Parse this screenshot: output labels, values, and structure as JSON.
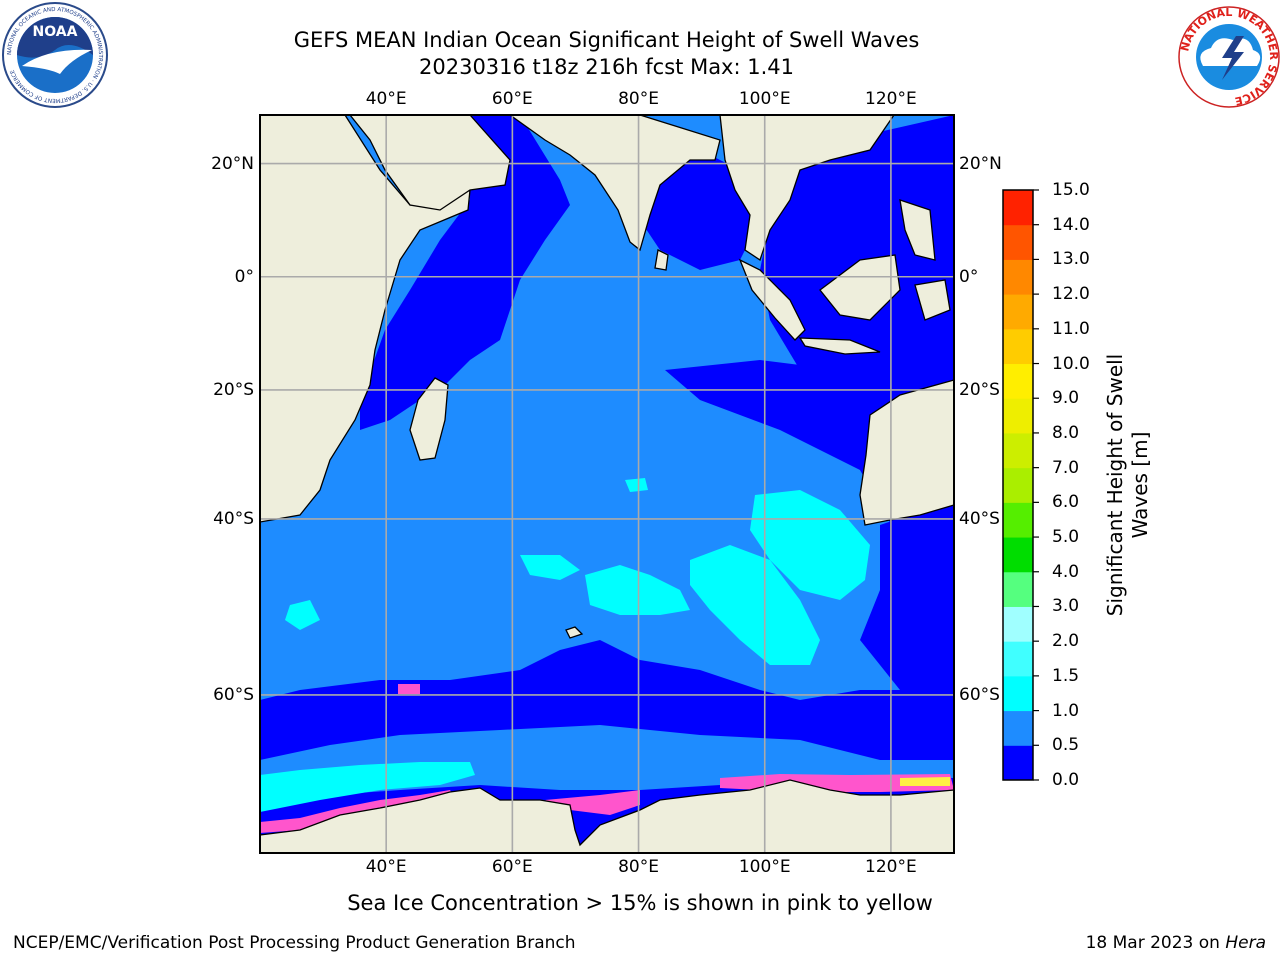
{
  "header": {
    "title_line1": "GEFS MEAN Indian Ocean Significant Height of Swell Waves",
    "title_line2": "20230316 t18z 216h fcst   Max: 1.41"
  },
  "logos": {
    "noaa": {
      "text": "NOAA",
      "ring_text": "NATIONAL OCEANIC AND ATMOSPHERIC ADMINISTRATION · U.S. DEPARTMENT OF COMMERCE"
    },
    "nws": {
      "ring_text": "NATIONAL WEATHER SERVICE"
    }
  },
  "map": {
    "lon_range": [
      20,
      130
    ],
    "lat_range": [
      -71.5,
      28
    ],
    "lon_ticks": [
      {
        "value": 40,
        "label": "40°E"
      },
      {
        "value": 60,
        "label": "60°E"
      },
      {
        "value": 80,
        "label": "80°E"
      },
      {
        "value": 100,
        "label": "100°E"
      },
      {
        "value": 120,
        "label": "120°E"
      }
    ],
    "lat_ticks": [
      {
        "value": 20,
        "label": "20°N"
      },
      {
        "value": 0,
        "label": "0°"
      },
      {
        "value": -20,
        "label": "20°S"
      },
      {
        "value": -40,
        "label": "40°S"
      },
      {
        "value": -60,
        "label": "60°S"
      }
    ],
    "grid": true,
    "land_color": "#eeeedc",
    "colors": {
      "0.0-0.5": "#0000ff",
      "0.5-1.0": "#1e8cff",
      "1.0-1.5": "#00ffff",
      "sea_ice": "#ff55cc"
    }
  },
  "colorbar": {
    "title_line1": "Significant Height of Swell",
    "title_line2": "Waves [m]",
    "levels": [
      "0.0",
      "0.5",
      "1.0",
      "1.5",
      "2.0",
      "3.0",
      "4.0",
      "5.0",
      "6.0",
      "7.0",
      "8.0",
      "9.0",
      "10.0",
      "11.0",
      "12.0",
      "13.0",
      "14.0",
      "15.0"
    ],
    "colors": [
      "#0000ff",
      "#1e8cff",
      "#00ffff",
      "#40ffff",
      "#a0ffff",
      "#55ff7f",
      "#00dd00",
      "#55ee00",
      "#aaee00",
      "#ccee00",
      "#eeee00",
      "#ffee00",
      "#ffcc00",
      "#ffaa00",
      "#ff8800",
      "#ff5500",
      "#ff2200"
    ]
  },
  "note": "Sea Ice Concentration > 15% is shown in pink to yellow",
  "footer": {
    "left": "NCEP/EMC/Verification Post Processing Product Generation Branch",
    "right_date": "18 Mar 2023 on ",
    "right_host": "Hera"
  }
}
